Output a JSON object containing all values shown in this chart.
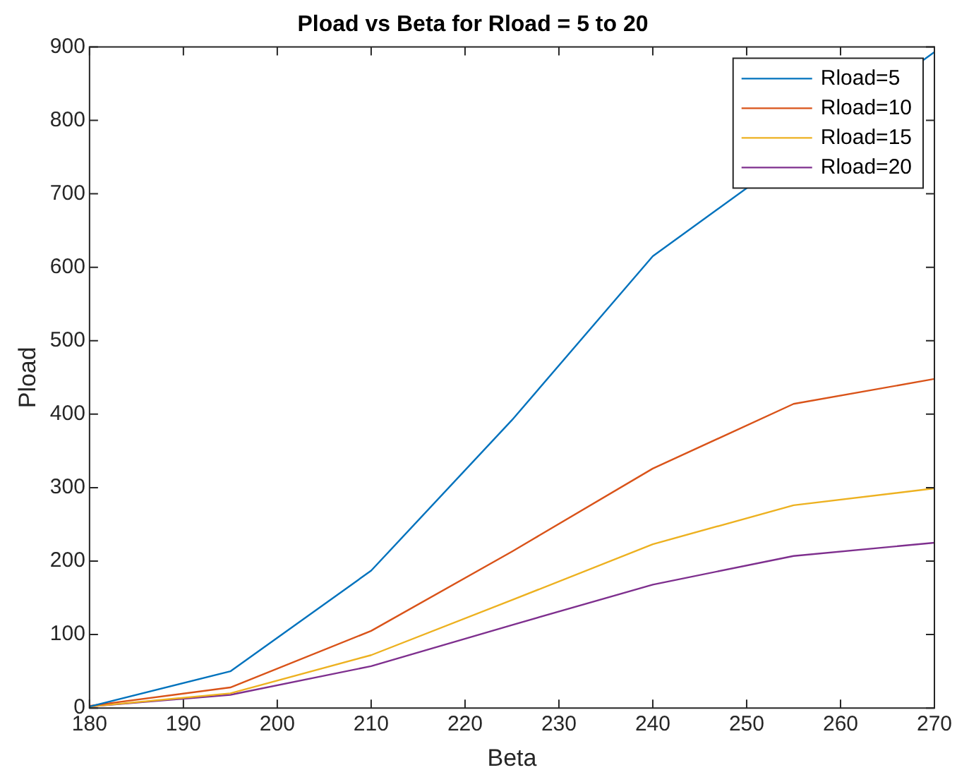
{
  "chart_data": {
    "type": "line",
    "title": "Pload vs Beta for Rload = 5 to 20",
    "xlabel": "Beta",
    "ylabel": "Pload",
    "x": [
      180,
      195,
      210,
      225,
      240,
      255,
      270
    ],
    "series": [
      {
        "name": "Rload=5",
        "color": "#0072bd",
        "values": [
          2,
          50,
          187,
          392,
          615,
          null,
          893
        ]
      },
      {
        "name": "Rload=10",
        "color": "#d95319",
        "values": [
          3,
          28,
          105,
          213,
          326,
          414,
          448
        ]
      },
      {
        "name": "Rload=15",
        "color": "#edb120",
        "values": [
          2,
          20,
          72,
          147,
          223,
          276,
          299
        ]
      },
      {
        "name": "Rload=20",
        "color": "#7e2f8e",
        "values": [
          2,
          18,
          57,
          113,
          168,
          207,
          225
        ]
      }
    ],
    "xlim": [
      180,
      270
    ],
    "xticks": [
      180,
      190,
      200,
      210,
      220,
      230,
      240,
      250,
      260,
      270
    ],
    "ylim": [
      0,
      900
    ],
    "yticks": [
      0,
      100,
      200,
      300,
      400,
      500,
      600,
      700,
      800,
      900
    ],
    "grid": false,
    "legend": "top right",
    "marker": "none",
    "line_style": "solid"
  }
}
